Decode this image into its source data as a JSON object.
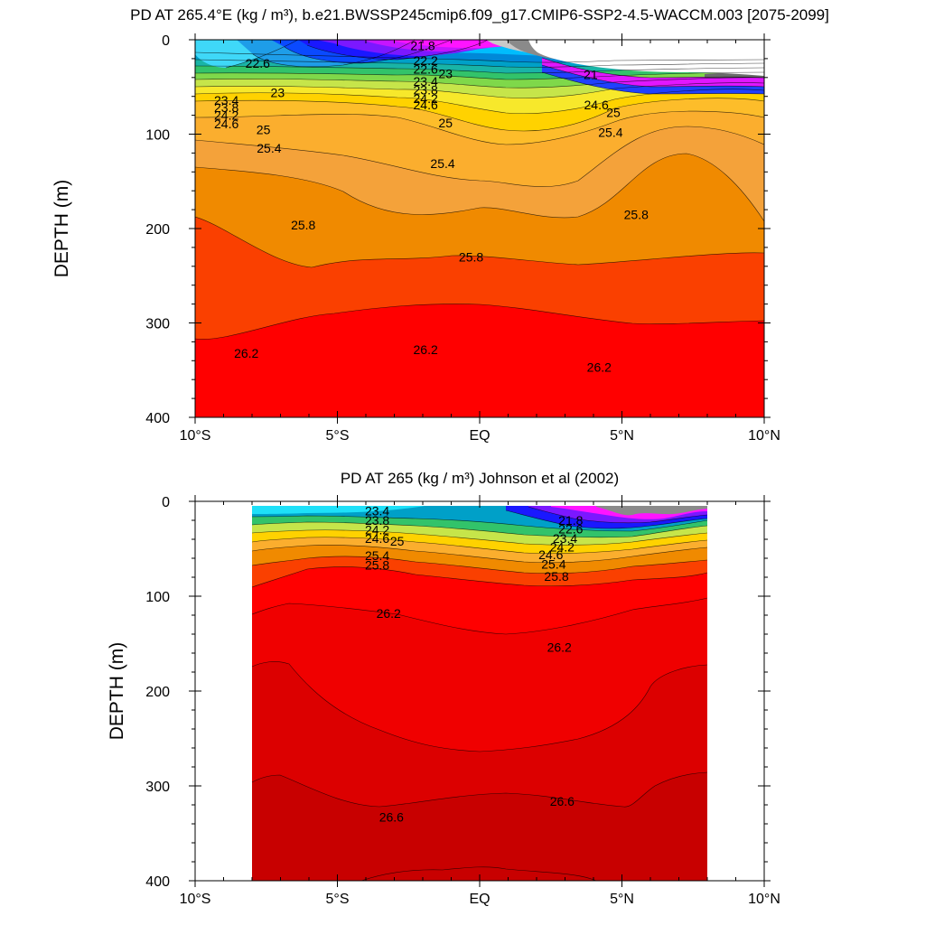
{
  "chart_data": [
    {
      "type": "contour",
      "title": "PD AT 265.4°E (kg / m³), b.e21.BWSSP245cmip6.f09_g17.CMIP6-SSP2-4.5-WACCM.003 [2075-2099]",
      "xlabel": "",
      "ylabel": "DEPTH (m)",
      "xlim": [
        -10,
        10
      ],
      "ylim": [
        0,
        400
      ],
      "y_reversed": true,
      "x_tick_values": [
        -10,
        -5,
        0,
        5,
        10
      ],
      "x_tick_labels": [
        "10°S",
        "5°S",
        "EQ",
        "5°N",
        "10°N"
      ],
      "y_tick_values": [
        0,
        100,
        200,
        300,
        400
      ],
      "y_tick_labels": [
        "0",
        "100",
        "200",
        "300",
        "400"
      ],
      "data_extent": [
        -10,
        10
      ],
      "contour_interval": 0.2,
      "levels_labeled": [
        {
          "level": 21.8,
          "text": "21.8",
          "lat": -2.0,
          "depth": 6
        },
        {
          "level": 22.2,
          "text": "22.2",
          "lat": -1.9,
          "depth": 22
        },
        {
          "level": 22.6,
          "text": "22.6",
          "lat": -7.8,
          "depth": 25
        },
        {
          "level": 22.6,
          "text": "22.6",
          "lat": -1.9,
          "depth": 31
        },
        {
          "level": 23.0,
          "text": "23",
          "lat": -1.2,
          "depth": 36
        },
        {
          "level": 23.0,
          "text": "23",
          "lat": -7.1,
          "depth": 56
        },
        {
          "level": 23.4,
          "text": "23.4",
          "lat": -1.9,
          "depth": 44
        },
        {
          "level": 23.8,
          "text": "23.8",
          "lat": -1.9,
          "depth": 53
        },
        {
          "level": 24.2,
          "text": "24.2",
          "lat": -1.9,
          "depth": 62
        },
        {
          "level": 24.6,
          "text": "24.6",
          "lat": -1.9,
          "depth": 69
        },
        {
          "level": 23.4,
          "text": "23.4",
          "lat": -8.9,
          "depth": 64
        },
        {
          "level": 23.8,
          "text": "23.8",
          "lat": -8.9,
          "depth": 72
        },
        {
          "level": 24.2,
          "text": "24.2",
          "lat": -8.9,
          "depth": 80
        },
        {
          "level": 24.6,
          "text": "24.6",
          "lat": -8.9,
          "depth": 89
        },
        {
          "level": 25.0,
          "text": "25",
          "lat": -7.6,
          "depth": 95
        },
        {
          "level": 25.0,
          "text": "25",
          "lat": -1.2,
          "depth": 88
        },
        {
          "level": 25.4,
          "text": "25.4",
          "lat": -7.4,
          "depth": 115
        },
        {
          "level": 25.4,
          "text": "25.4",
          "lat": -1.3,
          "depth": 131
        },
        {
          "level": 25.4,
          "text": "25.4",
          "lat": 4.6,
          "depth": 98
        },
        {
          "level": 25.8,
          "text": "25.8",
          "lat": -6.2,
          "depth": 196
        },
        {
          "level": 25.8,
          "text": "25.8",
          "lat": -0.3,
          "depth": 230
        },
        {
          "level": 25.8,
          "text": "25.8",
          "lat": 5.5,
          "depth": 185
        },
        {
          "level": 26.2,
          "text": "26.2",
          "lat": -8.2,
          "depth": 332
        },
        {
          "level": 26.2,
          "text": "26.2",
          "lat": -1.9,
          "depth": 328
        },
        {
          "level": 26.2,
          "text": "26.2",
          "lat": 4.2,
          "depth": 347
        },
        {
          "level": 21.0,
          "text": "21",
          "lat": 3.9,
          "depth": 37
        },
        {
          "level": 24.6,
          "text": "24.6",
          "lat": 4.1,
          "depth": 69
        },
        {
          "level": 25.0,
          "text": "25",
          "lat": 4.7,
          "depth": 77
        }
      ],
      "missing_region_top": {
        "description": "no-data area above sloping surface north of 2°N"
      }
    },
    {
      "type": "contour",
      "title": "PD AT 265 (kg / m³) Johnson et al (2002)",
      "xlabel": "",
      "ylabel": "DEPTH (m)",
      "xlim": [
        -10,
        10
      ],
      "ylim": [
        0,
        400
      ],
      "y_reversed": true,
      "x_tick_values": [
        -10,
        -5,
        0,
        5,
        10
      ],
      "x_tick_labels": [
        "10°S",
        "5°S",
        "EQ",
        "5°N",
        "10°N"
      ],
      "y_tick_values": [
        0,
        100,
        200,
        300,
        400
      ],
      "y_tick_labels": [
        "0",
        "100",
        "200",
        "300",
        "400"
      ],
      "data_extent": [
        -8,
        8
      ],
      "contour_interval": 0.2,
      "levels_labeled": [
        {
          "level": 23.4,
          "text": "23.4",
          "lat": -3.6,
          "depth": 10
        },
        {
          "level": 23.8,
          "text": "23.8",
          "lat": -3.6,
          "depth": 20
        },
        {
          "level": 24.2,
          "text": "24.2",
          "lat": -3.6,
          "depth": 30
        },
        {
          "level": 24.6,
          "text": "24.6",
          "lat": -3.6,
          "depth": 39
        },
        {
          "level": 25.0,
          "text": "25",
          "lat": -2.9,
          "depth": 42
        },
        {
          "level": 25.4,
          "text": "25.4",
          "lat": -3.6,
          "depth": 57
        },
        {
          "level": 25.8,
          "text": "25.8",
          "lat": -3.6,
          "depth": 67
        },
        {
          "level": 21.8,
          "text": "21.8",
          "lat": 3.2,
          "depth": 20
        },
        {
          "level": 22.6,
          "text": "22.6",
          "lat": 3.2,
          "depth": 29
        },
        {
          "level": 23.4,
          "text": "23.4",
          "lat": 3.0,
          "depth": 39
        },
        {
          "level": 24.2,
          "text": "24.2",
          "lat": 2.9,
          "depth": 48
        },
        {
          "level": 24.6,
          "text": "24.6",
          "lat": 2.5,
          "depth": 56
        },
        {
          "level": 25.4,
          "text": "25.4",
          "lat": 2.6,
          "depth": 66
        },
        {
          "level": 25.8,
          "text": "25.8",
          "lat": 2.7,
          "depth": 79
        },
        {
          "level": 26.2,
          "text": "26.2",
          "lat": -3.2,
          "depth": 118
        },
        {
          "level": 26.2,
          "text": "26.2",
          "lat": 2.8,
          "depth": 154
        },
        {
          "level": 26.6,
          "text": "26.6",
          "lat": -3.1,
          "depth": 333
        },
        {
          "level": 26.6,
          "text": "26.6",
          "lat": 2.9,
          "depth": 316
        }
      ]
    }
  ]
}
